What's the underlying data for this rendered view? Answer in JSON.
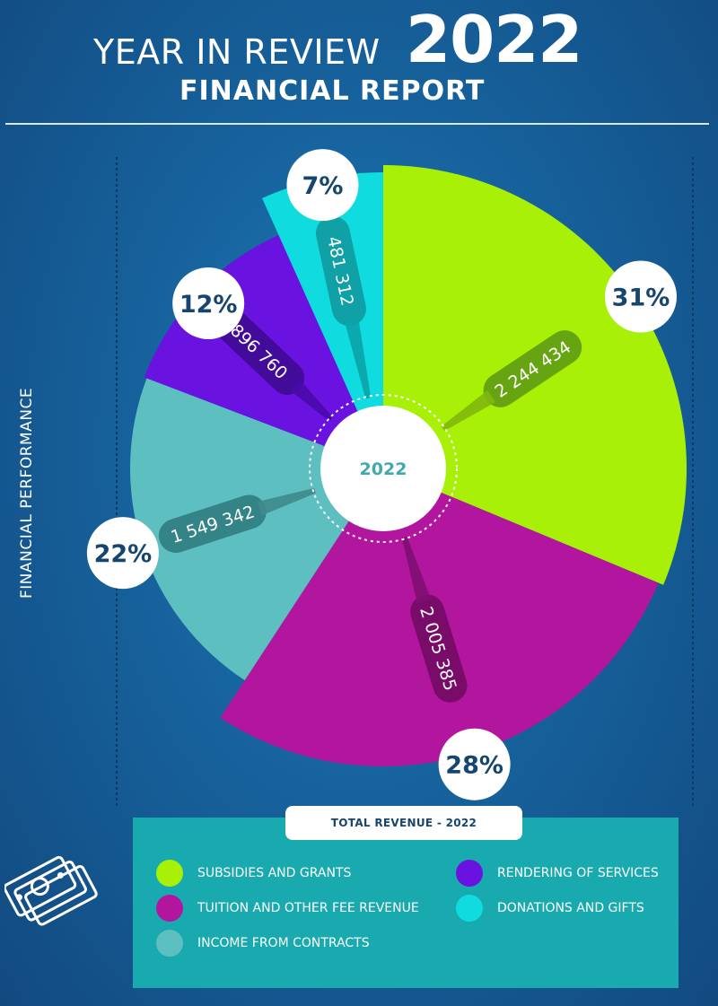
{
  "header": {
    "line1": "YEAR IN REVIEW",
    "year": "2022",
    "line2": "FINANCIAL REPORT"
  },
  "side_label": "FINANCIAL PERFORMANCE",
  "legend": {
    "title": "TOTAL REVENUE - 2022",
    "items": [
      {
        "label": "SUBSIDIES AND GRANTS",
        "color": "#a8f008"
      },
      {
        "label": "RENDERING OF SERVICES",
        "color": "#6a12e0"
      },
      {
        "label": "TUITION AND OTHER FEE REVENUE",
        "color": "#b3169e"
      },
      {
        "label": "DONATIONS AND GIFTS",
        "color": "#10dce0"
      },
      {
        "label": "INCOME FROM CONTRACTS",
        "color": "#5ebfc0"
      }
    ]
  },
  "chart_data": {
    "type": "pie",
    "center_label": "2022",
    "slices": [
      {
        "name": "SUBSIDIES AND GRANTS",
        "value": 2244434,
        "value_label": "2 244 434",
        "percent_label": "31%",
        "color": "#a8f008"
      },
      {
        "name": "TUITION AND OTHER FEE REVENUE",
        "value": 2005385,
        "value_label": "2 005 385",
        "percent_label": "28%",
        "color": "#b3169e"
      },
      {
        "name": "INCOME FROM CONTRACTS",
        "value": 1549342,
        "value_label": "1 549 342",
        "percent_label": "22%",
        "color": "#5ebfc0"
      },
      {
        "name": "RENDERING OF SERVICES",
        "value": 896760,
        "value_label": "896 760",
        "percent_label": "12%",
        "color": "#6a12e0"
      },
      {
        "name": "DONATIONS AND GIFTS",
        "value": 481312,
        "value_label": "481 312",
        "percent_label": "7%",
        "color": "#10dce0"
      }
    ]
  }
}
